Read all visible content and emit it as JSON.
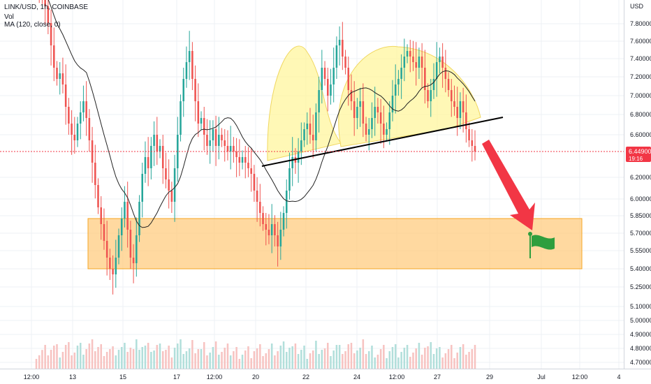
{
  "header": {
    "symbol_line": "LINK/USD, 1h, COINBASE",
    "vol_label": "Vol",
    "ma_label": "MA (120, close, 0)"
  },
  "price_badge": {
    "price": "6.44900",
    "countdown": "19:16",
    "color": "#f23645"
  },
  "colors": {
    "up": "#26a69a",
    "down": "#ef5350",
    "vol_up": "#b2dfdb",
    "vol_down": "#f7c3c1",
    "ma": "#222222",
    "pattern_fill": "#fff59d",
    "zone_fill": "#ffcc80",
    "zone_stroke": "#f5a623",
    "arrow": "#f23645",
    "flag": "#2e9e3e",
    "neckline": "#000000"
  },
  "chart_data": {
    "type": "candlestick",
    "title": "LINK/USD, 1h, COINBASE",
    "currency_label": "USD",
    "ylim": [
      4.6,
      8.0
    ],
    "grid": true,
    "yticks": [
      "7.80000",
      "7.60000",
      "7.40000",
      "7.20000",
      "7.00000",
      "6.80000",
      "6.60000",
      "6.20000",
      "6.00000",
      "5.85000",
      "5.70000",
      "5.55000",
      "5.40000",
      "5.25000",
      "5.10000",
      "5.00000",
      "4.90000",
      "4.80000",
      "4.70000"
    ],
    "xticks": [
      "12:00",
      "13",
      "15",
      "17",
      "12:00",
      "20",
      "22",
      "24",
      "12:00",
      "27",
      "29",
      "Jul",
      "12:00",
      "4"
    ],
    "close_series": [
      7.95,
      7.92,
      7.85,
      7.75,
      7.6,
      7.4,
      7.2,
      7.1,
      7.15,
      7.05,
      6.85,
      6.7,
      6.6,
      6.55,
      6.7,
      6.8,
      6.9,
      6.75,
      6.55,
      6.35,
      6.15,
      5.95,
      5.8,
      5.65,
      5.5,
      5.4,
      5.35,
      5.5,
      5.7,
      5.85,
      6.0,
      5.75,
      5.5,
      5.45,
      5.7,
      6.0,
      6.25,
      6.4,
      6.3,
      6.5,
      6.6,
      6.45,
      6.5,
      6.3,
      6.2,
      6.1,
      6.0,
      6.3,
      6.6,
      6.9,
      7.1,
      7.25,
      7.35,
      7.1,
      6.9,
      6.7,
      6.75,
      6.6,
      6.5,
      6.55,
      6.65,
      6.5,
      6.6,
      6.55,
      6.5,
      6.45,
      6.5,
      6.45,
      6.4,
      6.35,
      6.4,
      6.35,
      6.3,
      6.25,
      6.1,
      6.0,
      5.9,
      5.8,
      5.75,
      5.7,
      5.8,
      5.7,
      5.6,
      5.75,
      5.9,
      6.1,
      6.3,
      6.4,
      6.35,
      6.45,
      6.55,
      6.65,
      6.7,
      6.6,
      6.55,
      6.8,
      7.0,
      7.2,
      7.1,
      6.95,
      7.05,
      7.2,
      7.4,
      7.45,
      7.3,
      7.2,
      7.0,
      6.9,
      6.75,
      6.85,
      6.9,
      6.7,
      6.6,
      6.65,
      6.75,
      6.85,
      6.8,
      6.7,
      6.6,
      6.65,
      6.8,
      6.95,
      7.05,
      7.1,
      7.2,
      7.3,
      7.35,
      7.3,
      7.25,
      7.2,
      7.3,
      7.2,
      7.0,
      6.9,
      7.0,
      7.1,
      7.25,
      7.3,
      7.2,
      7.1,
      7.0,
      6.9,
      6.85,
      6.75,
      6.9,
      6.8,
      6.65,
      6.55,
      6.5,
      6.45
    ],
    "ma_label": "MA (120, close, 0)",
    "patterns": {
      "head_and_shoulders": true,
      "neckline": "ascending",
      "target_zone": [
        5.4,
        5.85
      ]
    }
  }
}
